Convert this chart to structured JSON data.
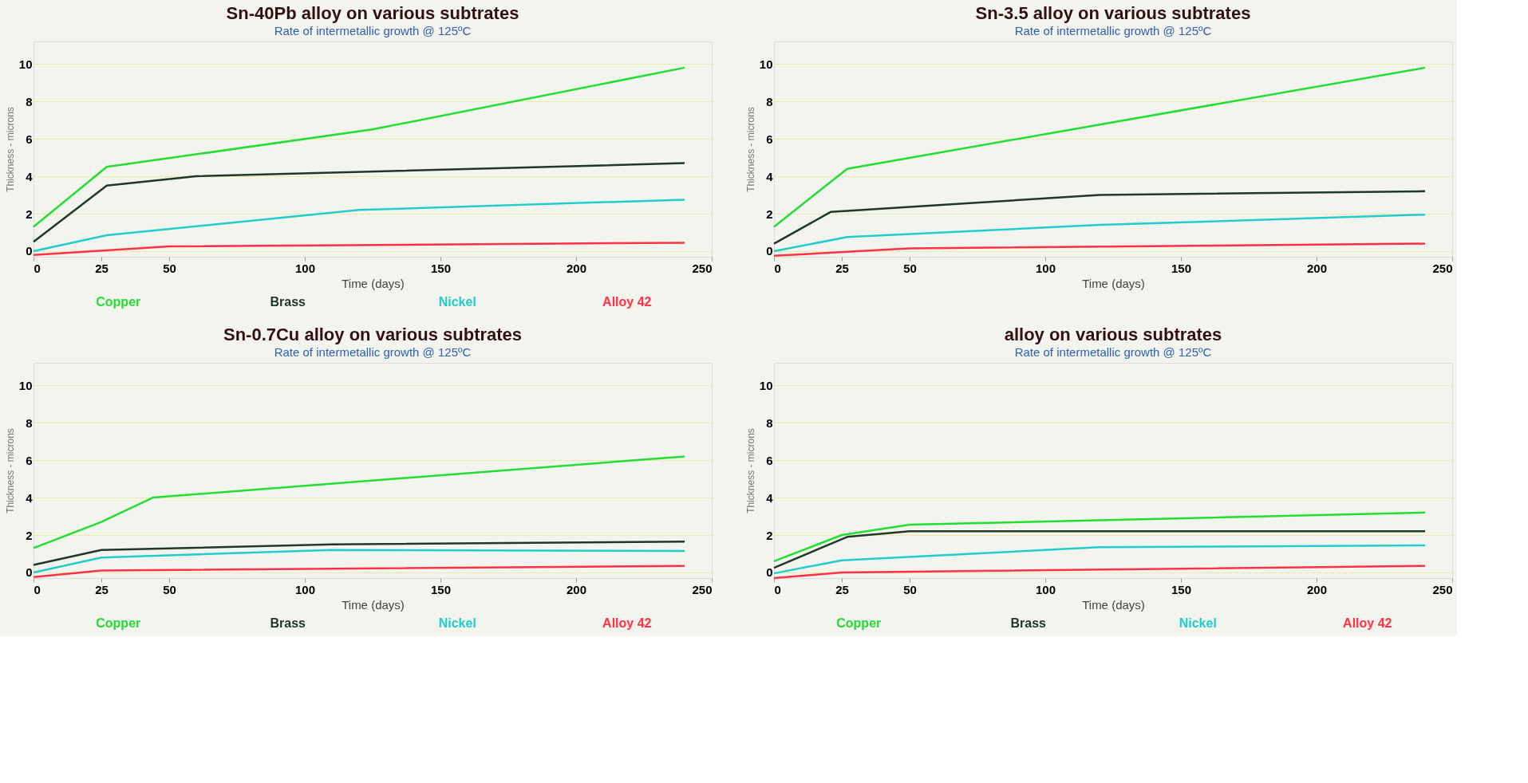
{
  "chart_data": [
    {
      "type": "line",
      "title": "Sn-40Pb alloy on various subtrates",
      "subtitle": "Rate of intermetallic growth @ 125ºC",
      "xlabel": "Time (days)",
      "ylabel": "Thickness - microns",
      "xlim": [
        0,
        250
      ],
      "ylim": [
        -0.3,
        11.2
      ],
      "xticks": [
        0,
        25,
        50,
        100,
        150,
        200,
        250
      ],
      "yticks": [
        0,
        2,
        4,
        6,
        8,
        10
      ],
      "grid": "y",
      "legend": "bottom",
      "series": [
        {
          "name": "Copper",
          "color": "#22dd33",
          "x": [
            0,
            27,
            125,
            240
          ],
          "values": [
            1.3,
            4.5,
            6.5,
            9.8
          ]
        },
        {
          "name": "Brass",
          "color": "#203828",
          "x": [
            0,
            27,
            60,
            240
          ],
          "values": [
            0.5,
            3.5,
            4.0,
            4.7
          ]
        },
        {
          "name": "Nickel",
          "color": "#22cccc",
          "x": [
            0,
            27,
            120,
            240
          ],
          "values": [
            0,
            0.85,
            2.2,
            2.75
          ]
        },
        {
          "name": "Alloy 42",
          "color": "#ff3344",
          "x": [
            0,
            50,
            240
          ],
          "values": [
            -0.2,
            0.25,
            0.45
          ]
        }
      ]
    },
    {
      "type": "line",
      "title": "Sn-3.5 alloy on various subtrates",
      "subtitle": "Rate of intermetallic growth @ 125ºC",
      "xlabel": "Time (days)",
      "ylabel": "Thickness - microns",
      "xlim": [
        0,
        250
      ],
      "ylim": [
        -0.3,
        11.2
      ],
      "xticks": [
        0,
        25,
        50,
        100,
        150,
        200,
        250
      ],
      "yticks": [
        0,
        2,
        4,
        6,
        8,
        10
      ],
      "grid": "y",
      "series": [
        {
          "color": "#22dd33",
          "x": [
            0,
            27,
            240
          ],
          "values": [
            1.3,
            4.4,
            9.8
          ]
        },
        {
          "color": "#203828",
          "x": [
            0,
            21,
            120,
            240
          ],
          "values": [
            0.4,
            2.1,
            3.0,
            3.2
          ]
        },
        {
          "color": "#22cccc",
          "x": [
            0,
            27,
            120,
            240
          ],
          "values": [
            0,
            0.75,
            1.4,
            1.95
          ]
        },
        {
          "color": "#ff3344",
          "x": [
            0,
            50,
            240
          ],
          "values": [
            -0.25,
            0.15,
            0.4
          ]
        }
      ]
    },
    {
      "type": "line",
      "title": "Sn-0.7Cu alloy on various subtrates",
      "subtitle": "Rate of intermetallic growth @ 125ºC",
      "xlabel": "Time (days)",
      "ylabel": "Thickness - microns",
      "xlim": [
        0,
        250
      ],
      "ylim": [
        -0.3,
        11.2
      ],
      "xticks": [
        0,
        25,
        50,
        100,
        150,
        200,
        250
      ],
      "yticks": [
        0,
        2,
        4,
        6,
        8,
        10
      ],
      "grid": "y",
      "legend": "bottom",
      "series": [
        {
          "name": "Copper",
          "color": "#22dd33",
          "x": [
            0,
            25,
            44,
            240
          ],
          "values": [
            1.3,
            2.7,
            4.0,
            6.2
          ]
        },
        {
          "name": "Brass",
          "color": "#203828",
          "x": [
            0,
            25,
            110,
            240
          ],
          "values": [
            0.4,
            1.2,
            1.5,
            1.65
          ]
        },
        {
          "name": "Nickel",
          "color": "#22cccc",
          "x": [
            0,
            25,
            110,
            240
          ],
          "values": [
            0,
            0.8,
            1.2,
            1.15
          ]
        },
        {
          "name": "Alloy 42",
          "color": "#ff3344",
          "x": [
            0,
            25,
            240
          ],
          "values": [
            -0.25,
            0.1,
            0.35
          ]
        }
      ]
    },
    {
      "type": "line",
      "title": "alloy on various subtrates",
      "subtitle": "Rate of intermetallic growth @ 125ºC",
      "xlabel": "Time (days)",
      "ylabel": "Thickness - microns",
      "xlim": [
        0,
        250
      ],
      "ylim": [
        -0.3,
        11.2
      ],
      "xticks": [
        0,
        25,
        50,
        100,
        150,
        200,
        250
      ],
      "yticks": [
        0,
        2,
        4,
        6,
        8,
        10
      ],
      "grid": "y",
      "legend": "bottom",
      "series": [
        {
          "name": "Copper",
          "color": "#22dd33",
          "x": [
            0,
            25,
            50,
            240
          ],
          "values": [
            0.6,
            2.0,
            2.55,
            3.2
          ]
        },
        {
          "name": "Brass",
          "color": "#203828",
          "x": [
            0,
            27,
            50,
            240
          ],
          "values": [
            0.25,
            1.9,
            2.2,
            2.2
          ]
        },
        {
          "name": "Nickel",
          "color": "#22cccc",
          "x": [
            0,
            25,
            120,
            240
          ],
          "values": [
            -0.05,
            0.65,
            1.35,
            1.45
          ]
        },
        {
          "name": "Alloy 42",
          "color": "#ff3344",
          "x": [
            0,
            25,
            240
          ],
          "values": [
            -0.3,
            0,
            0.35
          ]
        }
      ]
    }
  ]
}
